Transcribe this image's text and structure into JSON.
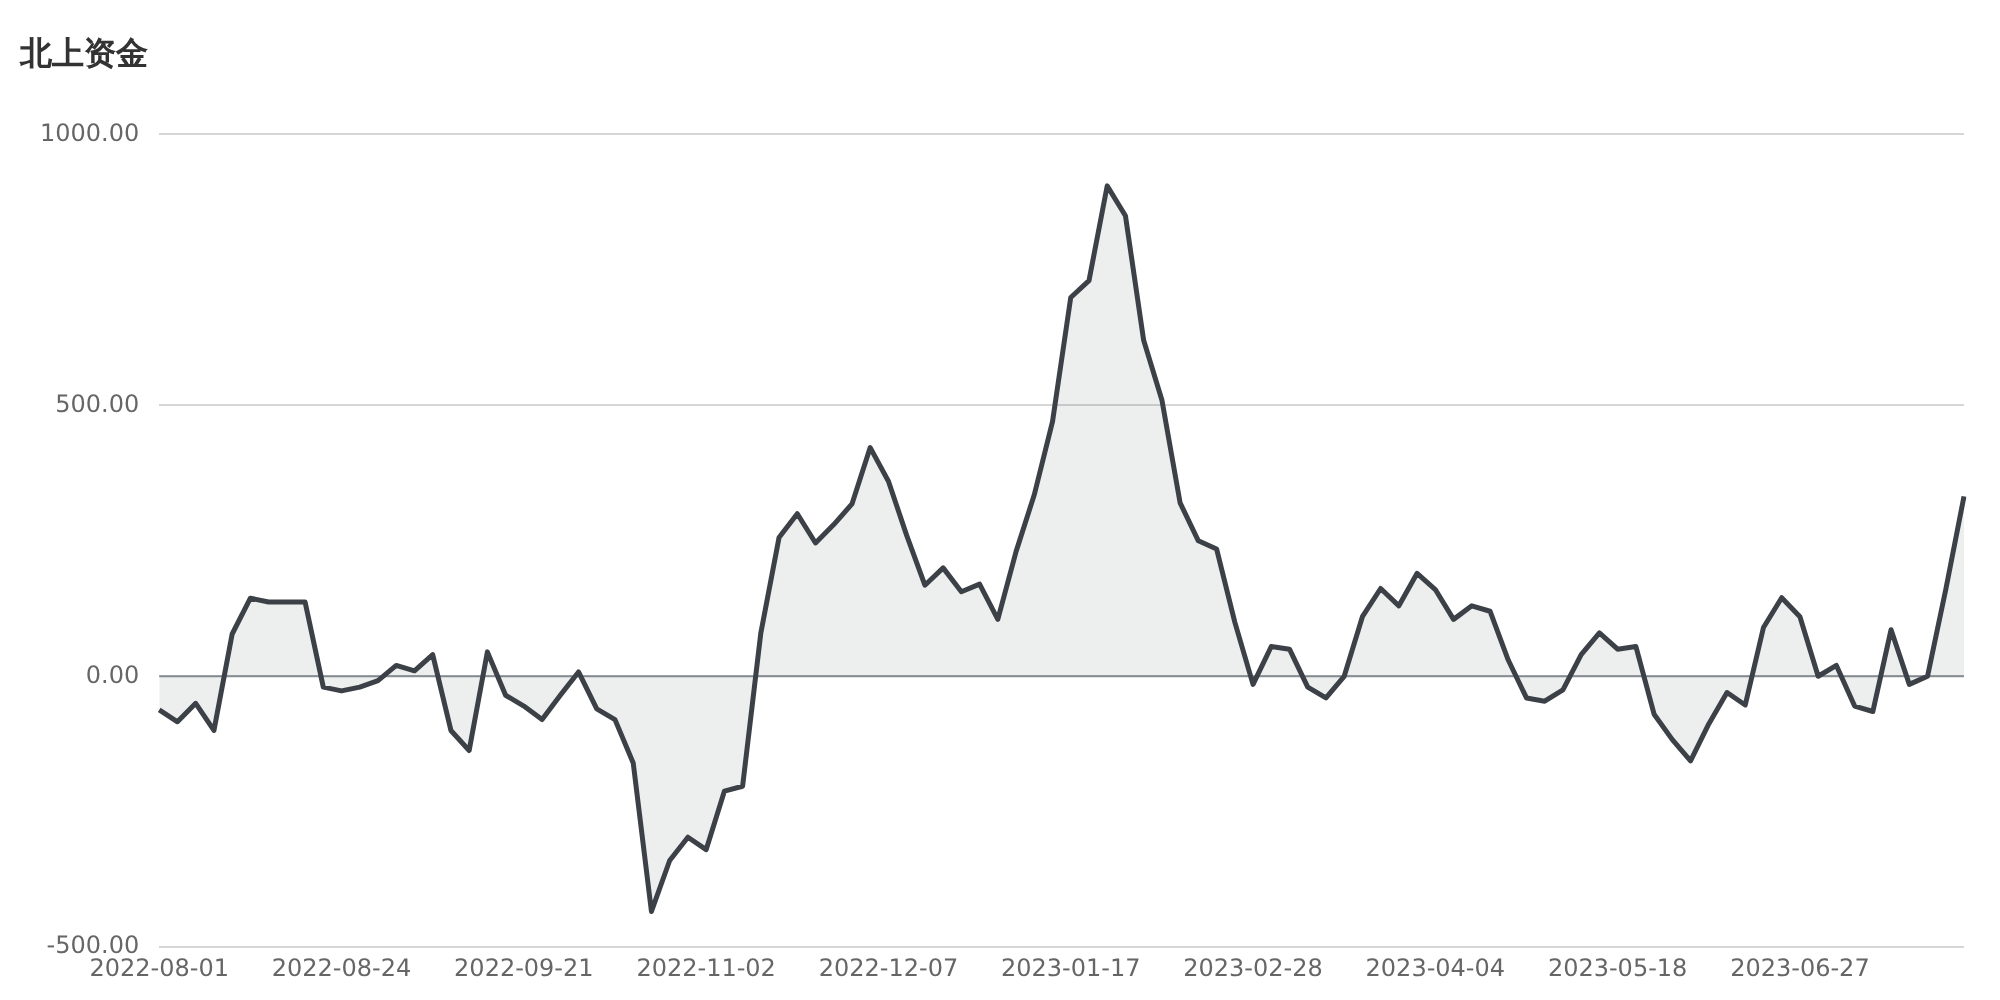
{
  "chart_data": {
    "type": "area",
    "title": "北上资金",
    "categories": [
      "2022-08-01",
      null,
      null,
      null,
      null,
      null,
      null,
      null,
      null,
      null,
      "2022-08-24",
      null,
      null,
      null,
      null,
      null,
      null,
      null,
      null,
      null,
      "2022-09-21",
      null,
      null,
      null,
      null,
      null,
      null,
      null,
      null,
      null,
      "2022-11-02",
      null,
      null,
      null,
      null,
      null,
      null,
      null,
      null,
      null,
      "2022-12-07",
      null,
      null,
      null,
      null,
      null,
      null,
      null,
      null,
      null,
      "2023-01-17",
      null,
      null,
      null,
      null,
      null,
      null,
      null,
      null,
      null,
      "2023-02-28",
      null,
      null,
      null,
      null,
      null,
      null,
      null,
      null,
      null,
      "2023-04-04",
      null,
      null,
      null,
      null,
      null,
      null,
      null,
      null,
      null,
      "2023-05-18",
      null,
      null,
      null,
      null,
      null,
      null,
      null,
      null,
      null,
      "2023-06-27",
      null,
      null,
      null,
      null,
      null,
      null,
      null,
      null,
      null
    ],
    "series": [
      {
        "color": "#3c4148",
        "values": [
          -62,
          -84,
          -50,
          -100,
          78,
          144,
          137,
          137,
          137,
          -20,
          -27,
          -20,
          -8,
          20,
          10,
          40,
          -100,
          -137,
          45,
          -35,
          -55,
          -80,
          -35,
          8,
          -60,
          -80,
          -160,
          -434,
          -340,
          -297,
          -320,
          -212,
          -203,
          80,
          256,
          300,
          246,
          280,
          318,
          422,
          360,
          260,
          168,
          200,
          156,
          170,
          105,
          230,
          335,
          470,
          699,
          730,
          905,
          850,
          620,
          510,
          320,
          250,
          235,
          100,
          -15,
          55,
          50,
          -20,
          -40,
          0,
          110,
          162,
          130,
          190,
          160,
          105,
          130,
          120,
          30,
          -40,
          -46,
          -25,
          40,
          80,
          50,
          55,
          -70,
          -117,
          -156,
          -88,
          -30,
          -53,
          90,
          145,
          110,
          0,
          20,
          -55,
          -65,
          86,
          -15,
          0,
          160,
          332
        ]
      }
    ],
    "ylim": [
      -500,
      1000
    ],
    "yticks": [
      {
        "value": -500,
        "label": "-500.00"
      },
      {
        "value": 0,
        "label": "0.00"
      },
      {
        "value": 500,
        "label": "500.00"
      },
      {
        "value": 1000,
        "label": "1000.00"
      }
    ],
    "ref_lines": [
      {
        "axis": "y",
        "value": 0,
        "color": "#8a8f96"
      }
    ],
    "grid": "y"
  }
}
